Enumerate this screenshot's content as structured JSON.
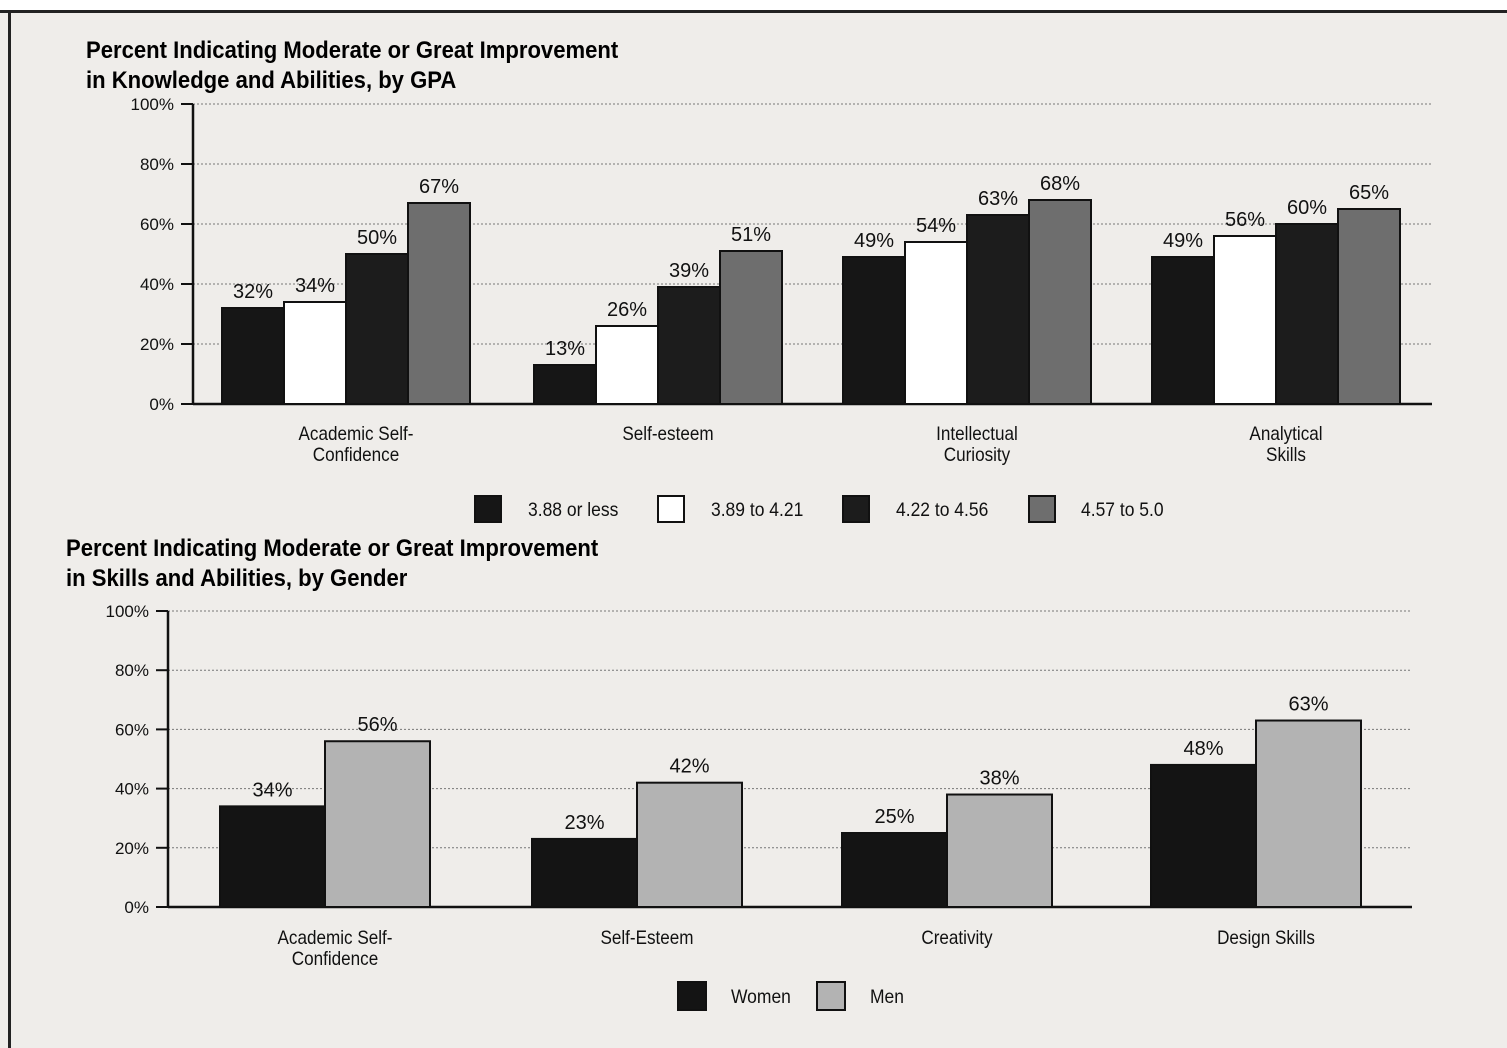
{
  "charts": [
    {
      "title_line1": "Percent Indicating Moderate or Great Improvement",
      "title_line2": "in Knowledge and Abilities, by GPA"
    },
    {
      "title_line1": "Percent Indicating Moderate or Great Improvement",
      "title_line2": "in Skills and Abilities, by Gender"
    }
  ],
  "chart_data": [
    {
      "type": "bar",
      "title": "Percent Indicating Moderate or Great Improvement in Knowledge and Abilities, by GPA",
      "categories": [
        [
          "Academic Self-",
          "Confidence"
        ],
        [
          "Self-esteem"
        ],
        [
          "Intellectual",
          "Curiosity"
        ],
        [
          "Analytical",
          "Skills"
        ]
      ],
      "series": [
        {
          "name": "3.88 or less",
          "values": [
            32,
            13,
            49,
            49
          ],
          "color": "#161616"
        },
        {
          "name": "3.89 to 4.21",
          "values": [
            34,
            26,
            54,
            56
          ],
          "color": "#ffffff"
        },
        {
          "name": "4.22 to 4.56",
          "values": [
            50,
            39,
            63,
            60
          ],
          "color": "#1c1c1c"
        },
        {
          "name": "4.57 to 5.0",
          "values": [
            67,
            51,
            68,
            65
          ],
          "color": "#6e6e6e"
        }
      ],
      "ylim": [
        0,
        100
      ],
      "yticks": [
        "0%",
        "20%",
        "40%",
        "60%",
        "80%",
        "100%"
      ],
      "grid": true,
      "legend_position": "bottom"
    },
    {
      "type": "bar",
      "title": "Percent Indicating Moderate or Great Improvement in Skills and Abilities, by Gender",
      "categories": [
        [
          "Academic Self-",
          "Confidence"
        ],
        [
          "Self-Esteem"
        ],
        [
          "Creativity"
        ],
        [
          "Design Skills"
        ]
      ],
      "series": [
        {
          "name": "Women",
          "values": [
            34,
            23,
            25,
            48
          ],
          "color": "#141414"
        },
        {
          "name": "Men",
          "values": [
            56,
            42,
            38,
            63
          ],
          "color": "#b3b3b3"
        }
      ],
      "ylim": [
        0,
        100
      ],
      "yticks": [
        "0%",
        "20%",
        "40%",
        "60%",
        "80%",
        "100%"
      ],
      "grid": true,
      "legend_position": "bottom"
    }
  ]
}
